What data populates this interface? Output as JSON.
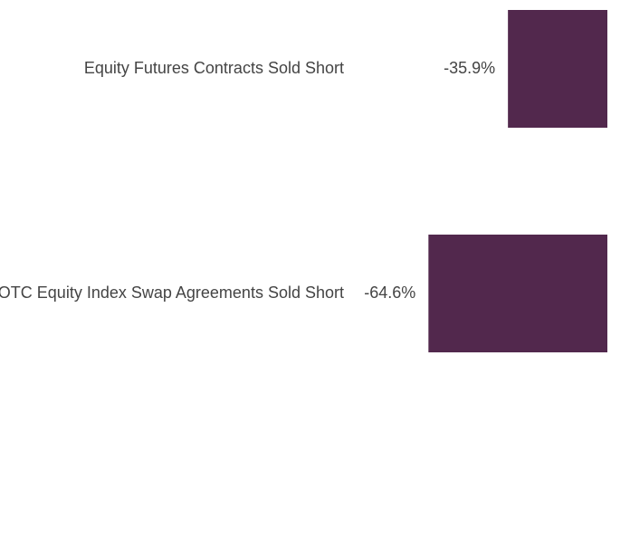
{
  "chart_data": {
    "type": "bar",
    "orientation": "horizontal",
    "categories": [
      "Equity Futures Contracts Sold Short",
      "OTC Equity Index Swap Agreements Sold Short"
    ],
    "values": [
      -35.9,
      -64.6
    ],
    "value_labels": [
      "-35.9%",
      "-64.6%"
    ],
    "color": "#52284d",
    "xlim": [
      -100,
      0
    ]
  }
}
